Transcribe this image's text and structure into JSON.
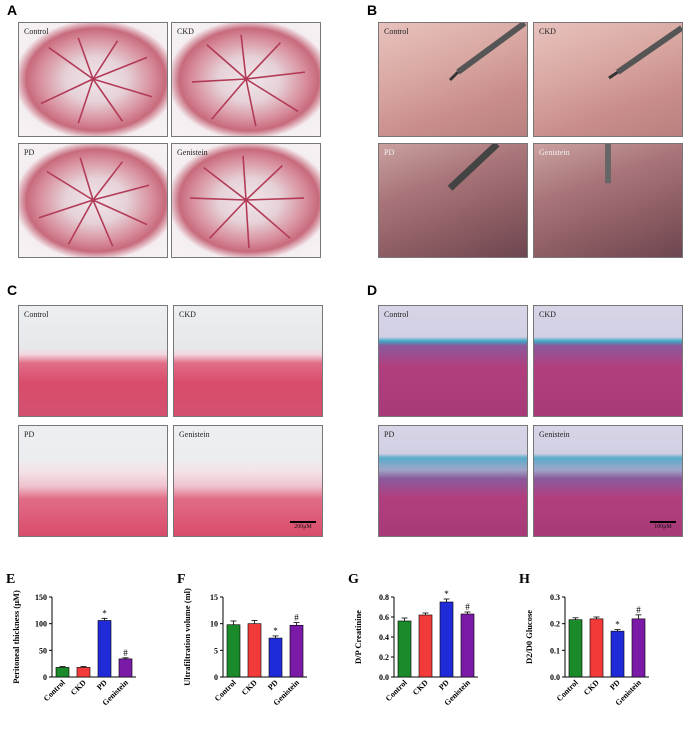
{
  "panels": {
    "A": {
      "letter": "A",
      "labels": [
        "Control",
        "CKD",
        "PD",
        "Genistein"
      ]
    },
    "B": {
      "letter": "B",
      "labels": [
        "Control",
        "CKD",
        "PD",
        "Genistein"
      ]
    },
    "C": {
      "letter": "C",
      "labels": [
        "Control",
        "CKD",
        "PD",
        "Genistein"
      ],
      "scale": "200μM"
    },
    "D": {
      "letter": "D",
      "labels": [
        "Control",
        "CKD",
        "PD",
        "Genistein"
      ],
      "scale": "100μM"
    }
  },
  "chart_data": [
    {
      "letter": "E",
      "type": "bar",
      "ylabel": "Peritoneal thickness (μM)",
      "categories": [
        "Control",
        "CKD",
        "PD",
        "Genistein"
      ],
      "values": [
        18,
        18,
        106,
        34
      ],
      "errors": [
        1.5,
        1.5,
        4,
        2
      ],
      "marks": [
        "",
        "",
        "*",
        "#"
      ],
      "ylim": [
        0,
        150
      ],
      "ticks": [
        "0",
        "50",
        "100",
        "150"
      ],
      "colors": [
        "#1a8a2a",
        "#f23a3a",
        "#1f2bd9",
        "#7a1aa6"
      ]
    },
    {
      "letter": "F",
      "type": "bar",
      "ylabel": "Ultrafiltration volume (ml)",
      "categories": [
        "Control",
        "CKD",
        "PD",
        "Genistein"
      ],
      "values": [
        9.8,
        10.0,
        7.3,
        9.7
      ],
      "errors": [
        0.7,
        0.6,
        0.4,
        0.5
      ],
      "marks": [
        "",
        "",
        "*",
        "#"
      ],
      "ylim": [
        0,
        15
      ],
      "ticks": [
        "0",
        "5",
        "10",
        "15"
      ],
      "colors": [
        "#1a8a2a",
        "#f23a3a",
        "#1f2bd9",
        "#7a1aa6"
      ]
    },
    {
      "letter": "G",
      "type": "bar",
      "ylabel": "D/P Creatinine",
      "categories": [
        "Control",
        "CKD",
        "PD",
        "Genistein"
      ],
      "values": [
        0.56,
        0.62,
        0.75,
        0.63
      ],
      "errors": [
        0.03,
        0.02,
        0.03,
        0.02
      ],
      "marks": [
        "",
        "",
        "*",
        "#"
      ],
      "ylim": [
        0,
        0.8
      ],
      "ticks": [
        "0.0",
        "0.2",
        "0.4",
        "0.6",
        "0.8"
      ],
      "colors": [
        "#1a8a2a",
        "#f23a3a",
        "#1f2bd9",
        "#7a1aa6"
      ]
    },
    {
      "letter": "H",
      "type": "bar",
      "ylabel": "D2/D0 Glucose",
      "categories": [
        "Control",
        "CKD",
        "PD",
        "Genistein"
      ],
      "values": [
        0.215,
        0.218,
        0.172,
        0.218
      ],
      "errors": [
        0.007,
        0.007,
        0.006,
        0.015
      ],
      "marks": [
        "",
        "",
        "*",
        "#"
      ],
      "ylim": [
        0,
        0.3
      ],
      "ticks": [
        "0.0",
        "0.1",
        "0.2",
        "0.3"
      ],
      "colors": [
        "#1a8a2a",
        "#f23a3a",
        "#1f2bd9",
        "#7a1aa6"
      ]
    }
  ]
}
